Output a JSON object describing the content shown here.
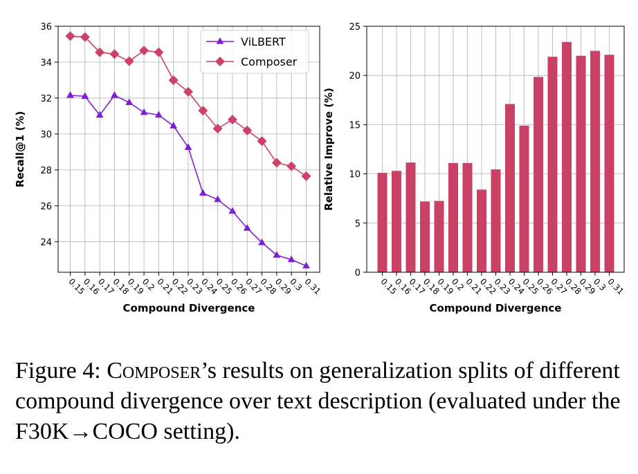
{
  "chart_data": [
    {
      "type": "line",
      "categories": [
        "0.15",
        "0.16",
        "0.17",
        "0.18",
        "0.19",
        "0.2",
        "0.21",
        "0.22",
        "0.23",
        "0.24",
        "0.25",
        "0.26",
        "0.27",
        "0.28",
        "0.29",
        "0.3",
        "0.31"
      ],
      "series": [
        {
          "name": "ViLBERT",
          "color": "#7e1fd6",
          "marker": "triangle",
          "values": [
            32.15,
            32.1,
            31.05,
            32.15,
            31.75,
            31.2,
            31.05,
            30.45,
            29.25,
            26.7,
            26.35,
            25.7,
            24.75,
            23.95,
            23.25,
            23.0,
            22.65
          ]
        },
        {
          "name": "Composer",
          "color": "#cd4166",
          "marker": "diamond",
          "values": [
            35.45,
            35.4,
            34.55,
            34.45,
            34.05,
            34.65,
            34.55,
            33.0,
            32.35,
            31.3,
            30.3,
            30.8,
            30.2,
            29.6,
            28.4,
            28.2,
            27.65
          ]
        }
      ],
      "xlabel": "Compound Divergence",
      "ylabel": "Recall@1 (%)",
      "ylim": [
        22.3,
        36.0
      ],
      "yticks": [
        24,
        26,
        28,
        30,
        32,
        34,
        36
      ],
      "grid": true,
      "legend": "top-right"
    },
    {
      "type": "bar",
      "categories": [
        "0.15",
        "0.16",
        "0.17",
        "0.18",
        "0.19",
        "0.2",
        "0.21",
        "0.22",
        "0.23",
        "0.24",
        "0.25",
        "0.26",
        "0.27",
        "0.28",
        "0.29",
        "0.3",
        "0.31"
      ],
      "values": [
        10.1,
        10.3,
        11.15,
        7.2,
        7.25,
        11.1,
        11.1,
        8.4,
        10.45,
        17.1,
        14.9,
        19.85,
        21.9,
        23.4,
        22.0,
        22.5,
        22.1
      ],
      "color": "#c94266",
      "xlabel": "Compound Divergence",
      "ylabel": "Relative Improve (%)",
      "ylim": [
        0,
        25
      ],
      "yticks": [
        0,
        5,
        10,
        15,
        20,
        25
      ],
      "grid": true
    }
  ],
  "caption": {
    "prefix": "Figure 4: ",
    "name": "Composer",
    "rest": "’s results on generalization splits of different compound divergence over text description (evaluated under the F30K→COCO setting)."
  }
}
